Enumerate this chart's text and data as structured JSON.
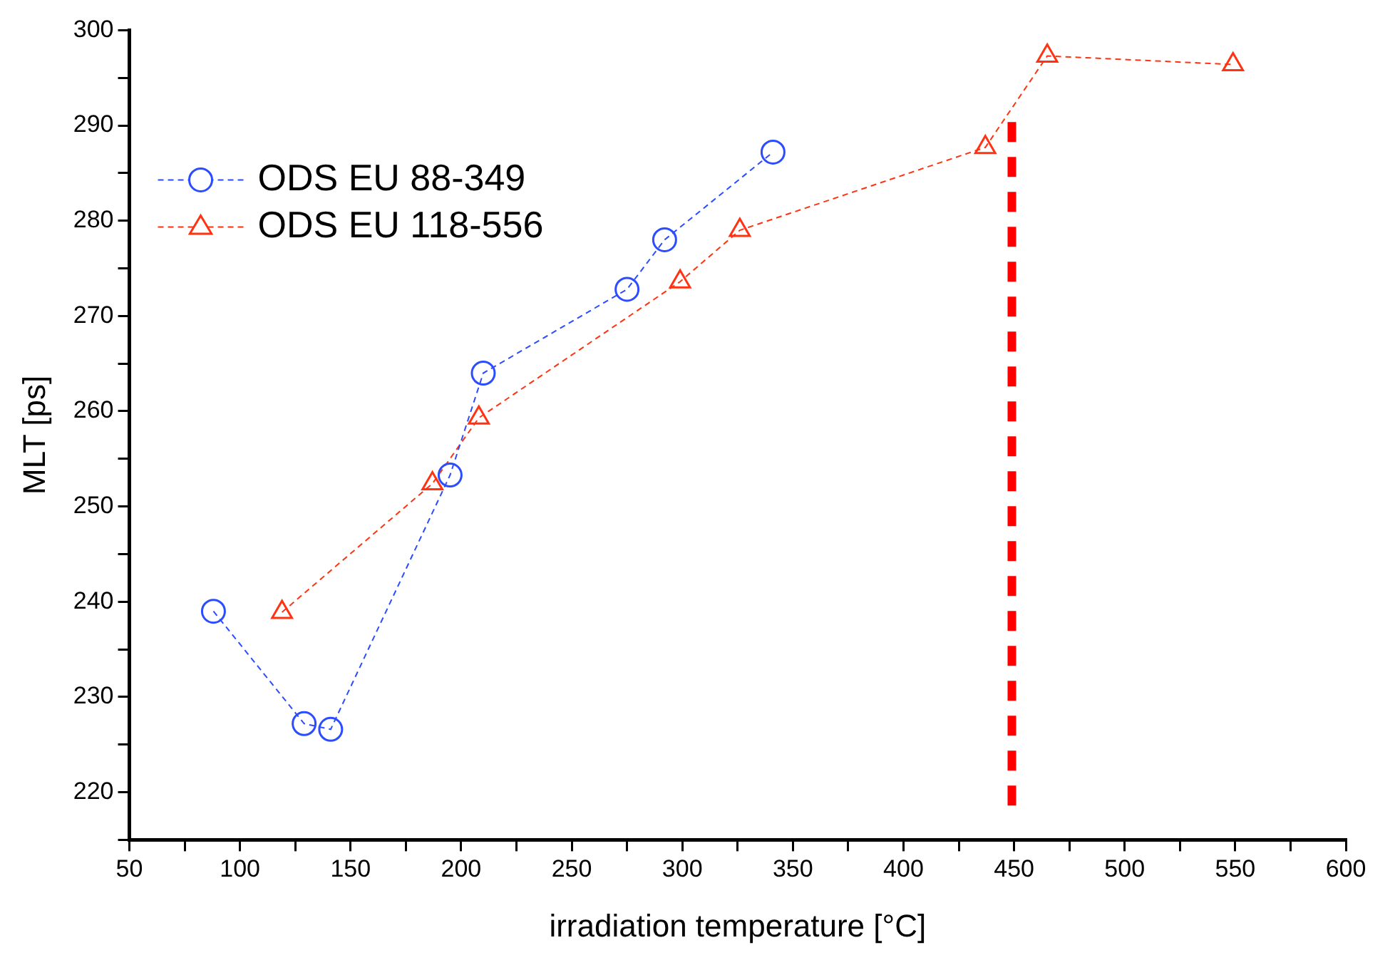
{
  "chart_data": {
    "type": "line",
    "xlabel": "irradiation temperature [°C]",
    "ylabel": "MLT [ps]",
    "xlim": [
      50,
      600
    ],
    "ylim": [
      215,
      300
    ],
    "xticks": [
      50,
      {
        "value": 75,
        "label": null
      },
      100,
      {
        "value": 125,
        "label": null
      },
      150,
      {
        "value": 175,
        "label": null
      },
      200,
      {
        "value": 225,
        "label": null
      },
      250,
      {
        "value": 275,
        "label": null
      },
      300,
      {
        "value": 325,
        "label": null
      },
      350,
      {
        "value": 375,
        "label": null
      },
      400,
      {
        "value": 425,
        "label": null
      },
      450,
      {
        "value": 475,
        "label": null
      },
      500,
      {
        "value": 525,
        "label": null
      },
      550,
      {
        "value": 575,
        "label": null
      },
      600
    ],
    "yticks": [
      {
        "value": 215,
        "label": null
      },
      220,
      {
        "value": 225,
        "label": null
      },
      230,
      {
        "value": 235,
        "label": null
      },
      240,
      {
        "value": 245,
        "label": null
      },
      250,
      {
        "value": 255,
        "label": null
      },
      260,
      {
        "value": 265,
        "label": null
      },
      270,
      {
        "value": 275,
        "label": null
      },
      280,
      {
        "value": 285,
        "label": null
      },
      290,
      {
        "value": 295,
        "label": null
      },
      300
    ],
    "grid": false,
    "legend": "top left",
    "series": [
      {
        "name": "ODS EU 88-349",
        "color": "#2b4cff",
        "marker": "circle",
        "line_style": "dashed",
        "x": [
          88,
          129,
          141,
          195,
          210,
          275,
          292,
          341
        ],
        "values": [
          239,
          227.2,
          226.6,
          253.3,
          264,
          272.8,
          278,
          287.2
        ]
      },
      {
        "name": "ODS EU 118-556",
        "color": "#ff3311",
        "marker": "triangle",
        "line_style": "dashed",
        "x": [
          119,
          187,
          208,
          299,
          326,
          437,
          465,
          549
        ],
        "values": [
          238.9,
          252.4,
          259.3,
          273.6,
          279,
          287.7,
          297.3,
          296.4
        ]
      },
      {
        "color": "#ff0000",
        "marker": "none",
        "line_style": "dashed",
        "x": [
          449,
          449
        ],
        "values": [
          218.6,
          291
        ]
      }
    ]
  }
}
